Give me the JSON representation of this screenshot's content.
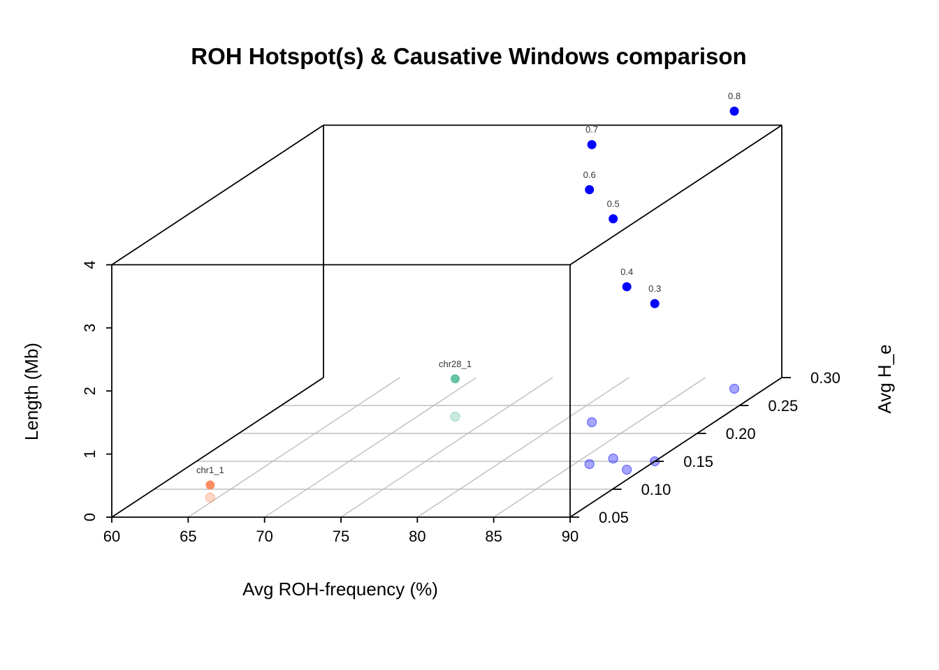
{
  "chart_data": {
    "type": "scatter3d",
    "title": "ROH Hotspot(s) & Causative Windows comparison",
    "xlabel": "Avg ROH-frequency (%)",
    "ylabel": "Avg H_e",
    "zlabel": "Length (Mb)",
    "xlim": [
      60,
      90
    ],
    "ylim": [
      0.05,
      0.3
    ],
    "zlim": [
      0,
      4
    ],
    "x_ticks": [
      "60",
      "65",
      "70",
      "75",
      "80",
      "85",
      "90"
    ],
    "y_ticks": [
      "0.05",
      "0.10",
      "0.15",
      "0.20",
      "0.25",
      "0.30"
    ],
    "z_ticks": [
      "0",
      "1",
      "2",
      "3",
      "4"
    ],
    "grid": true,
    "drop_shadows": true,
    "colors": {
      "hotspot_a": "#FC8D62",
      "hotspot_b": "#66C2A5",
      "windows": "#0000FF",
      "box": "#000000",
      "grid": "#BEBEBE"
    },
    "series": [
      {
        "color_key": "hotspot_a",
        "points": [
          {
            "label": "chr1_1",
            "x": 64.5,
            "y": 0.085,
            "z": 0.2
          }
        ]
      },
      {
        "color_key": "hotspot_b",
        "points": [
          {
            "label": "chr28_1",
            "x": 72.5,
            "y": 0.23,
            "z": 0.6
          }
        ]
      },
      {
        "color_key": "windows",
        "points": [
          {
            "label": "0.3",
            "x": 90,
            "y": 0.15,
            "z": 2.5
          },
          {
            "label": "0.4",
            "x": 89,
            "y": 0.135,
            "z": 2.9
          },
          {
            "label": "0.5",
            "x": 87,
            "y": 0.155,
            "z": 3.8
          },
          {
            "label": "0.6",
            "x": 86,
            "y": 0.145,
            "z": 4.35
          },
          {
            "label": "0.7",
            "x": 82,
            "y": 0.22,
            "z": 4.4
          },
          {
            "label": "0.8",
            "x": 88,
            "y": 0.28,
            "z": 4.4
          }
        ]
      }
    ]
  }
}
